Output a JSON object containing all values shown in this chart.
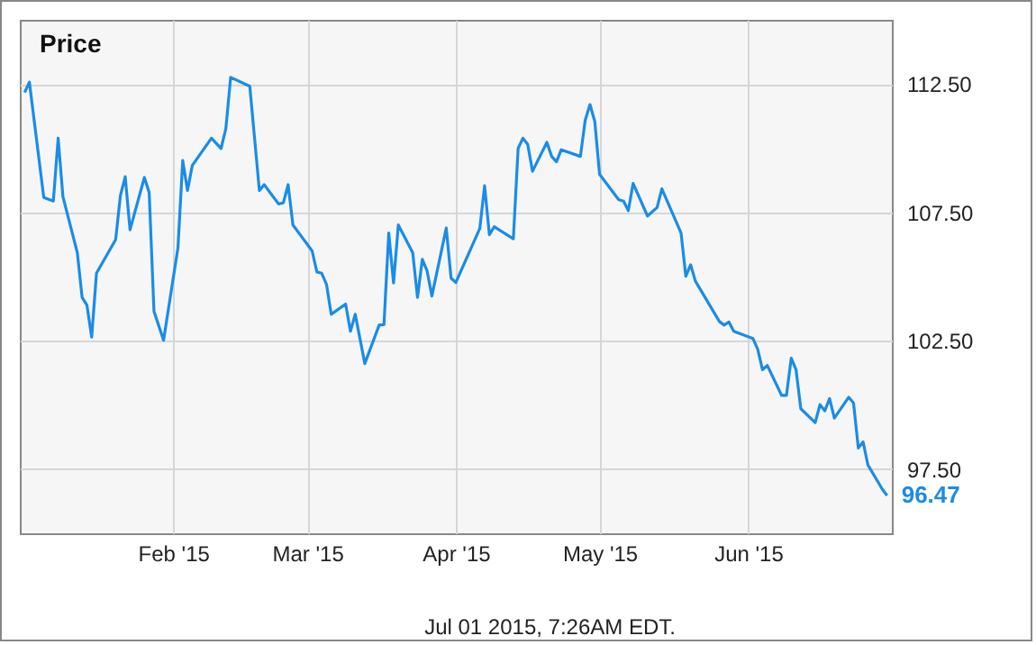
{
  "chart_data": {
    "type": "line",
    "title": "Price",
    "annotations": [
      {
        "text": "96.47",
        "x": "2015-06-30",
        "y": 96.47
      },
      "Jul 01 2015, 7:26AM EDT."
    ],
    "x": [
      "2015-01-01",
      "2015-01-02",
      "2015-01-05",
      "2015-01-07",
      "2015-01-08",
      "2015-01-09",
      "2015-01-12",
      "2015-01-13",
      "2015-01-14",
      "2015-01-15",
      "2015-01-16",
      "2015-01-20",
      "2015-01-21",
      "2015-01-22",
      "2015-01-23",
      "2015-01-26",
      "2015-01-27",
      "2015-01-28",
      "2015-01-30",
      "2015-02-02",
      "2015-02-03",
      "2015-02-04",
      "2015-02-05",
      "2015-02-09",
      "2015-02-11",
      "2015-02-12",
      "2015-02-13",
      "2015-02-17",
      "2015-02-19",
      "2015-02-20",
      "2015-02-23",
      "2015-02-24",
      "2015-02-25",
      "2015-02-26",
      "2015-03-02",
      "2015-03-03",
      "2015-03-04",
      "2015-03-05",
      "2015-03-06",
      "2015-03-09",
      "2015-03-10",
      "2015-03-11",
      "2015-03-13",
      "2015-03-16",
      "2015-03-17",
      "2015-03-18",
      "2015-03-19",
      "2015-03-20",
      "2015-03-23",
      "2015-03-24",
      "2015-03-25",
      "2015-03-26",
      "2015-03-27",
      "2015-03-30",
      "2015-03-31",
      "2015-04-01",
      "2015-04-06",
      "2015-04-07",
      "2015-04-08",
      "2015-04-09",
      "2015-04-13",
      "2015-04-14",
      "2015-04-15",
      "2015-04-16",
      "2015-04-17",
      "2015-04-20",
      "2015-04-21",
      "2015-04-22",
      "2015-04-23",
      "2015-04-27",
      "2015-04-28",
      "2015-04-29",
      "2015-04-30",
      "2015-05-01",
      "2015-05-05",
      "2015-05-06",
      "2015-05-07",
      "2015-05-08",
      "2015-05-11",
      "2015-05-13",
      "2015-05-14",
      "2015-05-18",
      "2015-05-19",
      "2015-05-20",
      "2015-05-21",
      "2015-05-26",
      "2015-05-27",
      "2015-05-28",
      "2015-05-29",
      "2015-06-02",
      "2015-06-03",
      "2015-06-04",
      "2015-06-05",
      "2015-06-08",
      "2015-06-09",
      "2015-06-10",
      "2015-06-11",
      "2015-06-12",
      "2015-06-15",
      "2015-06-16",
      "2015-06-17",
      "2015-06-18",
      "2015-06-19",
      "2015-06-22",
      "2015-06-23",
      "2015-06-24",
      "2015-06-25",
      "2015-06-26",
      "2015-06-29",
      "2015-06-30"
    ],
    "series": [
      {
        "color": "#1a8ce6",
        "values": [
          112.17,
          112.57,
          108.08,
          107.94,
          110.39,
          108.11,
          105.93,
          104.19,
          103.89,
          102.64,
          105.13,
          106.44,
          108.16,
          108.89,
          106.82,
          108.86,
          108.27,
          103.65,
          102.52,
          106.11,
          109.52,
          108.35,
          109.33,
          110.39,
          109.99,
          110.76,
          112.76,
          112.41,
          108.35,
          108.58,
          107.83,
          107.87,
          108.58,
          107.01,
          106.0,
          105.18,
          105.13,
          104.7,
          103.53,
          103.93,
          102.87,
          103.53,
          101.61,
          103.11,
          103.13,
          106.7,
          104.75,
          107.01,
          105.93,
          104.19,
          105.67,
          105.22,
          104.24,
          106.89,
          104.94,
          104.77,
          106.87,
          108.54,
          106.63,
          106.94,
          106.47,
          109.99,
          110.39,
          110.15,
          109.1,
          110.23,
          109.68,
          109.47,
          109.94,
          109.68,
          111.09,
          111.7,
          111.04,
          108.98,
          107.99,
          107.94,
          107.57,
          108.63,
          107.36,
          107.69,
          108.42,
          106.7,
          105.01,
          105.46,
          104.82,
          103.25,
          103.11,
          103.23,
          102.87,
          102.59,
          102.17,
          101.37,
          101.54,
          100.37,
          100.37,
          101.82,
          101.37,
          99.85,
          99.31,
          100.01,
          99.77,
          100.25,
          99.49,
          100.3,
          100.08,
          98.32,
          98.56,
          97.66,
          96.72,
          96.47
        ]
      }
    ],
    "xlim": [
      "2014-12-31",
      "2015-07-01"
    ],
    "ylim": [
      95,
      115
    ],
    "xticks": [
      {
        "value": "2015-02-01",
        "label": "Feb '15"
      },
      {
        "value": "2015-03-01",
        "label": "Mar '15"
      },
      {
        "value": "2015-04-01",
        "label": "Apr '15"
      },
      {
        "value": "2015-05-01",
        "label": "May '15"
      },
      {
        "value": "2015-06-01",
        "label": "Jun '15"
      }
    ],
    "yticks": [
      {
        "value": 97.5,
        "label": "97.50"
      },
      {
        "value": 102.5,
        "label": "102.50"
      },
      {
        "value": 107.5,
        "label": "107.50"
      },
      {
        "value": 112.5,
        "label": "112.50"
      }
    ],
    "grid": true,
    "marker": "none",
    "line_style": "solid"
  }
}
